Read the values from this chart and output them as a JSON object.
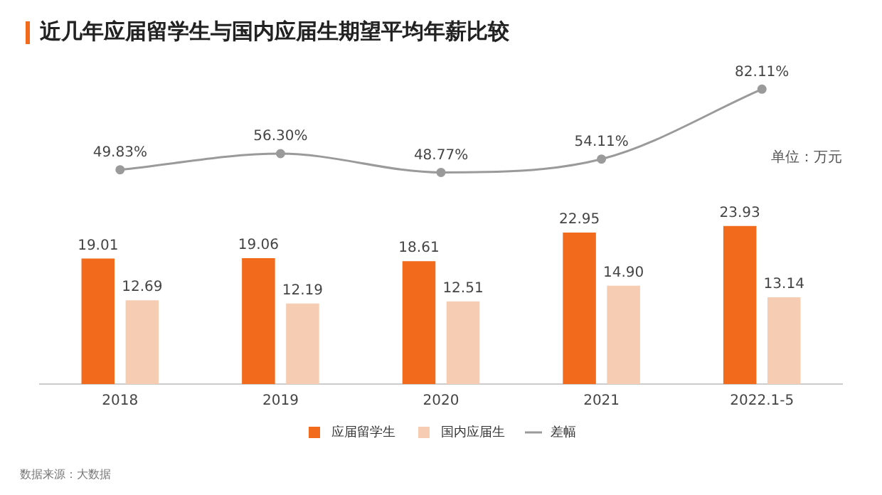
{
  "chart_data": [
    {
      "type": "line",
      "title": "近几年应届留学生与国内应届生期望平均年薪比较",
      "categories": [
        null,
        null,
        null,
        null,
        null
      ],
      "series": [
        {
          "name": "差幅",
          "color": "#9a9a9a",
          "values": [
            49.83,
            56.3,
            48.77,
            54.11,
            82.11
          ],
          "value_labels": [
            "49.83%",
            "56.30%",
            "48.77%",
            "54.11%",
            "82.11%"
          ]
        }
      ],
      "legend": "bottom",
      "grid": false,
      "marker": "circle"
    },
    {
      "type": "bar",
      "categories": [
        "2018",
        "2019",
        "2020",
        "2021",
        "2022.1-5"
      ],
      "series": [
        {
          "name": "应届留学生",
          "color": "#f26b1d",
          "values": [
            19.01,
            19.06,
            18.61,
            22.95,
            23.93
          ],
          "value_labels": [
            "19.01",
            "19.06",
            "18.61",
            "22.95",
            "23.93"
          ]
        },
        {
          "name": "国内应届生",
          "color": "#f6cdb3",
          "values": [
            12.69,
            12.19,
            12.51,
            14.9,
            13.14
          ],
          "value_labels": [
            "12.69",
            "12.19",
            "12.51",
            "14.90",
            "13.14"
          ]
        }
      ],
      "legend": "bottom",
      "grid": false,
      "annotations": [
        "单位：万元",
        "数据来源：大数据"
      ]
    }
  ]
}
